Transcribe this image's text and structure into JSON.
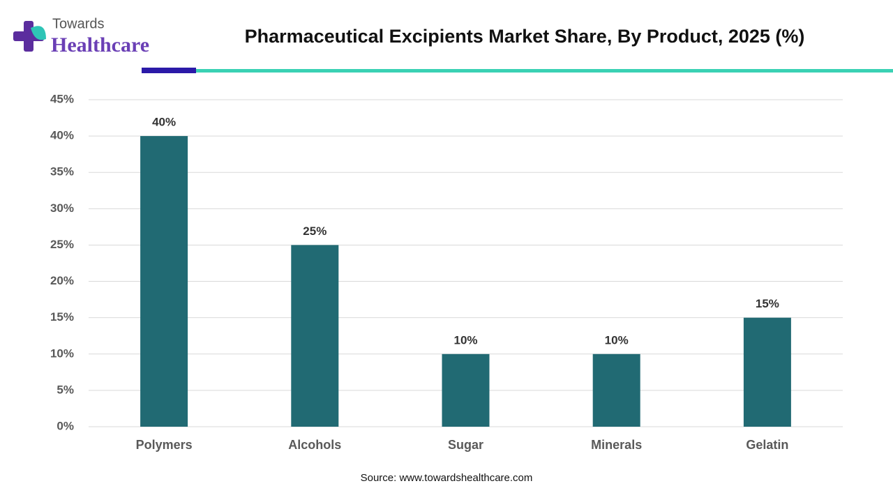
{
  "brand": {
    "line1": "Towards",
    "line2": "Healthcare"
  },
  "chart_data": {
    "type": "bar",
    "title": "Pharmaceutical Excipients Market Share, By Product, 2025 (%)",
    "categories": [
      "Polymers",
      "Alcohols",
      "Sugar",
      "Minerals",
      "Gelatin"
    ],
    "values": [
      40,
      25,
      10,
      10,
      15
    ],
    "value_labels": [
      "40%",
      "25%",
      "10%",
      "10%",
      "15%"
    ],
    "color": "#216a73",
    "ylim": [
      0,
      45
    ],
    "yticks": [
      {
        "value": 0,
        "label": "0%"
      },
      {
        "value": 5,
        "label": "5%"
      },
      {
        "value": 10,
        "label": "10%"
      },
      {
        "value": 15,
        "label": "15%"
      },
      {
        "value": 20,
        "label": "20%"
      },
      {
        "value": 25,
        "label": "25%"
      },
      {
        "value": 30,
        "label": "30%"
      },
      {
        "value": 35,
        "label": "35%"
      },
      {
        "value": 40,
        "label": "40%"
      },
      {
        "value": 45,
        "label": "45%"
      }
    ],
    "grid": true,
    "source": "Source: www.towardshealthcare.com"
  }
}
